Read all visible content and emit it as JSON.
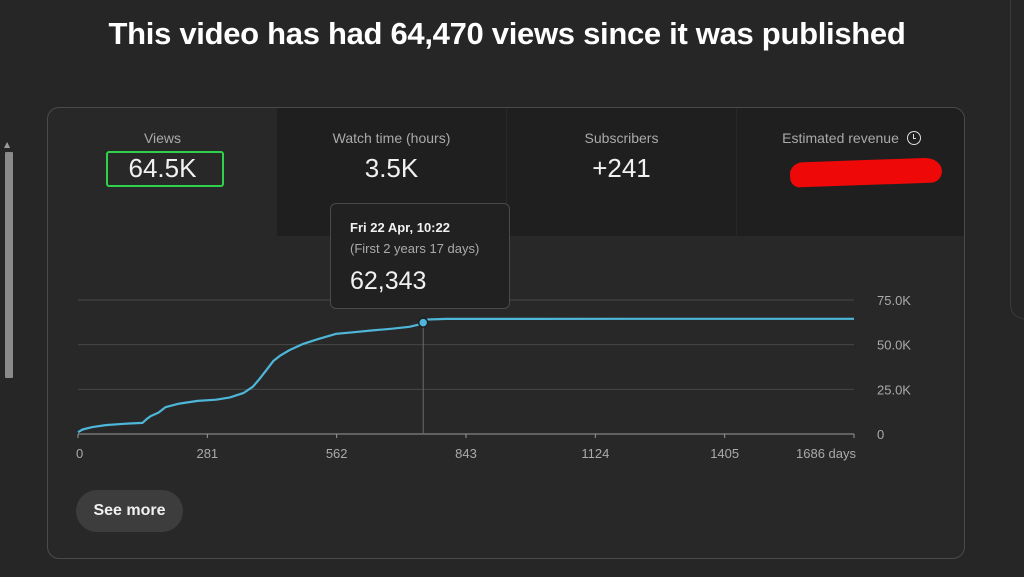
{
  "headline": "This video has had 64,470 views since it was published",
  "metrics": [
    {
      "label": "Views",
      "value": "64.5K",
      "selected": true
    },
    {
      "label": "Watch time (hours)",
      "value": "3.5K"
    },
    {
      "label": "Subscribers",
      "value": "+241"
    },
    {
      "label": "Estimated revenue",
      "value": "",
      "redacted": true,
      "icon": "clock-icon"
    }
  ],
  "tooltip": {
    "date": "Fri 22 Apr, 10:22",
    "subtitle": "(First 2 years 17 days)",
    "value": "62,343"
  },
  "see_more_label": "See more",
  "colors": {
    "line": "#4db6d9",
    "highlight_border": "#2fd14a",
    "redaction": "#ee0808"
  },
  "chart_data": {
    "type": "line",
    "xlabel": "",
    "ylabel": "",
    "x_ticks": [
      0,
      281,
      562,
      843,
      1124,
      1405,
      1686
    ],
    "x_tick_labels": [
      "0",
      "281",
      "562",
      "843",
      "1124",
      "1405",
      "1686 days"
    ],
    "y_ticks": [
      0,
      25000,
      50000,
      75000
    ],
    "y_tick_labels": [
      "0",
      "25.0K",
      "50.0K",
      "75.0K"
    ],
    "xlim": [
      0,
      1686
    ],
    "ylim": [
      0,
      75000
    ],
    "grid": true,
    "series": [
      {
        "values_x": [
          0,
          10,
          30,
          60,
          100,
          140,
          150,
          158,
          175,
          190,
          220,
          260,
          300,
          330,
          360,
          380,
          395,
          410,
          425,
          440,
          460,
          490,
          520,
          560,
          600,
          640,
          680,
          720,
          745,
          750,
          760,
          800,
          900,
          1000,
          1200,
          1400,
          1600,
          1686
        ],
        "values_y": [
          1000,
          2500,
          3800,
          5000,
          5700,
          6200,
          8500,
          10000,
          12000,
          15000,
          17000,
          18500,
          19200,
          20500,
          23000,
          26500,
          31000,
          36000,
          41000,
          44000,
          47000,
          50500,
          53000,
          56000,
          57000,
          58000,
          58900,
          60000,
          61500,
          62343,
          64100,
          64400,
          64420,
          64440,
          64450,
          64460,
          64465,
          64470
        ]
      }
    ],
    "highlight": {
      "x": 750,
      "y": 62343
    }
  }
}
